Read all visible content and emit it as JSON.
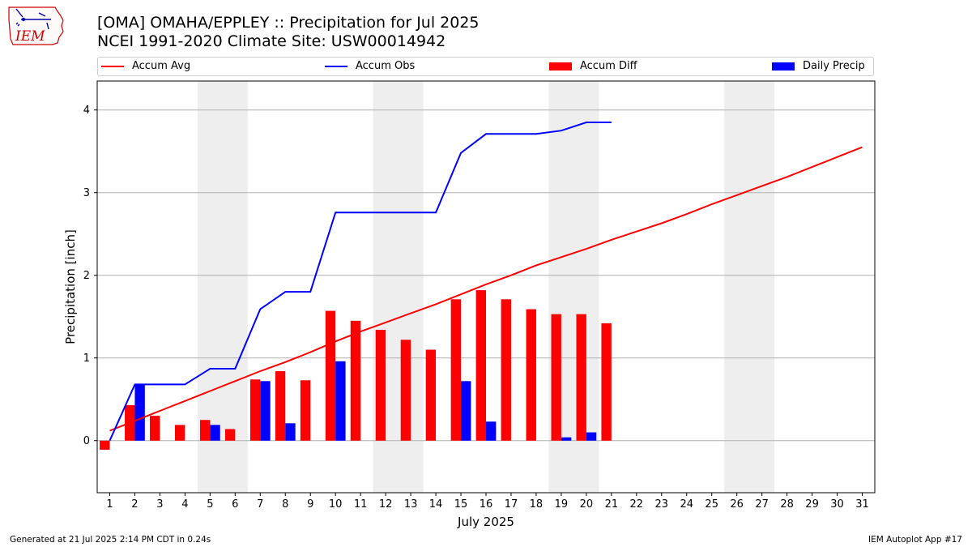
{
  "header": {
    "title_line1": "[OMA] OMAHA/EPPLEY :: Precipitation for Jul 2025",
    "title_line2": "NCEI 1991-2020 Climate Site: USW00014942"
  },
  "logo": {
    "text": "IEM",
    "icon": "iowa-state-outline-icon",
    "color": "#cc0000"
  },
  "legend": {
    "accum_avg": "Accum Avg",
    "accum_obs": "Accum Obs",
    "accum_diff": "Accum Diff",
    "daily_precip": "Daily Precip"
  },
  "footer": {
    "left": "Generated at 21 Jul 2025 2:14 PM CDT in 0.24s",
    "right": "IEM Autoplot App #17"
  },
  "colors": {
    "avg": "#ff0000",
    "obs": "#0000ff",
    "diff": "#ff0000",
    "daily": "#0000ff",
    "weekend_shade": "#eeeeee",
    "grid": "#b0b0b0"
  },
  "chart_data": {
    "type": "bar",
    "xlabel": "July 2025",
    "ylabel": "Precipitation [inch]",
    "ylim": [
      -0.63,
      4.35
    ],
    "yticks": [
      0,
      1,
      2,
      3,
      4
    ],
    "grid": "horizontal",
    "legend_position": "top",
    "days": [
      1,
      2,
      3,
      4,
      5,
      6,
      7,
      8,
      9,
      10,
      11,
      12,
      13,
      14,
      15,
      16,
      17,
      18,
      19,
      20,
      21,
      22,
      23,
      24,
      25,
      26,
      27,
      28,
      29,
      30,
      31
    ],
    "weekend_shaded_days": [
      [
        5,
        6
      ],
      [
        12,
        13
      ],
      [
        19,
        20
      ],
      [
        26,
        27
      ]
    ],
    "series": [
      {
        "name": "Accum Avg",
        "kind": "line",
        "values": [
          0.12,
          0.24,
          0.36,
          0.48,
          0.6,
          0.72,
          0.84,
          0.95,
          1.07,
          1.2,
          1.32,
          1.43,
          1.54,
          1.65,
          1.77,
          1.89,
          2.0,
          2.12,
          2.22,
          2.32,
          2.43,
          2.53,
          2.63,
          2.74,
          2.86,
          2.97,
          3.08,
          3.19,
          3.31,
          3.43,
          3.55
        ]
      },
      {
        "name": "Accum Obs",
        "kind": "line",
        "values": [
          0.0,
          0.68,
          0.68,
          0.68,
          0.87,
          0.87,
          1.59,
          1.8,
          1.8,
          2.76,
          2.76,
          2.76,
          2.76,
          2.76,
          3.48,
          3.71,
          3.71,
          3.71,
          3.75,
          3.85,
          3.85
        ]
      },
      {
        "name": "Accum Diff",
        "kind": "bar",
        "values": [
          -0.11,
          0.43,
          0.3,
          0.19,
          0.25,
          0.14,
          0.74,
          0.84,
          0.73,
          1.57,
          1.45,
          1.34,
          1.22,
          1.1,
          1.71,
          1.82,
          1.71,
          1.59,
          1.53,
          1.53,
          1.42
        ]
      },
      {
        "name": "Daily Precip",
        "kind": "bar",
        "values": [
          0.0,
          0.68,
          0.0,
          0.0,
          0.19,
          0.0,
          0.72,
          0.21,
          0.0,
          0.96,
          0.0,
          0.0,
          0.0,
          0.0,
          0.72,
          0.23,
          0.0,
          0.0,
          0.04,
          0.1,
          0.0
        ]
      }
    ]
  }
}
